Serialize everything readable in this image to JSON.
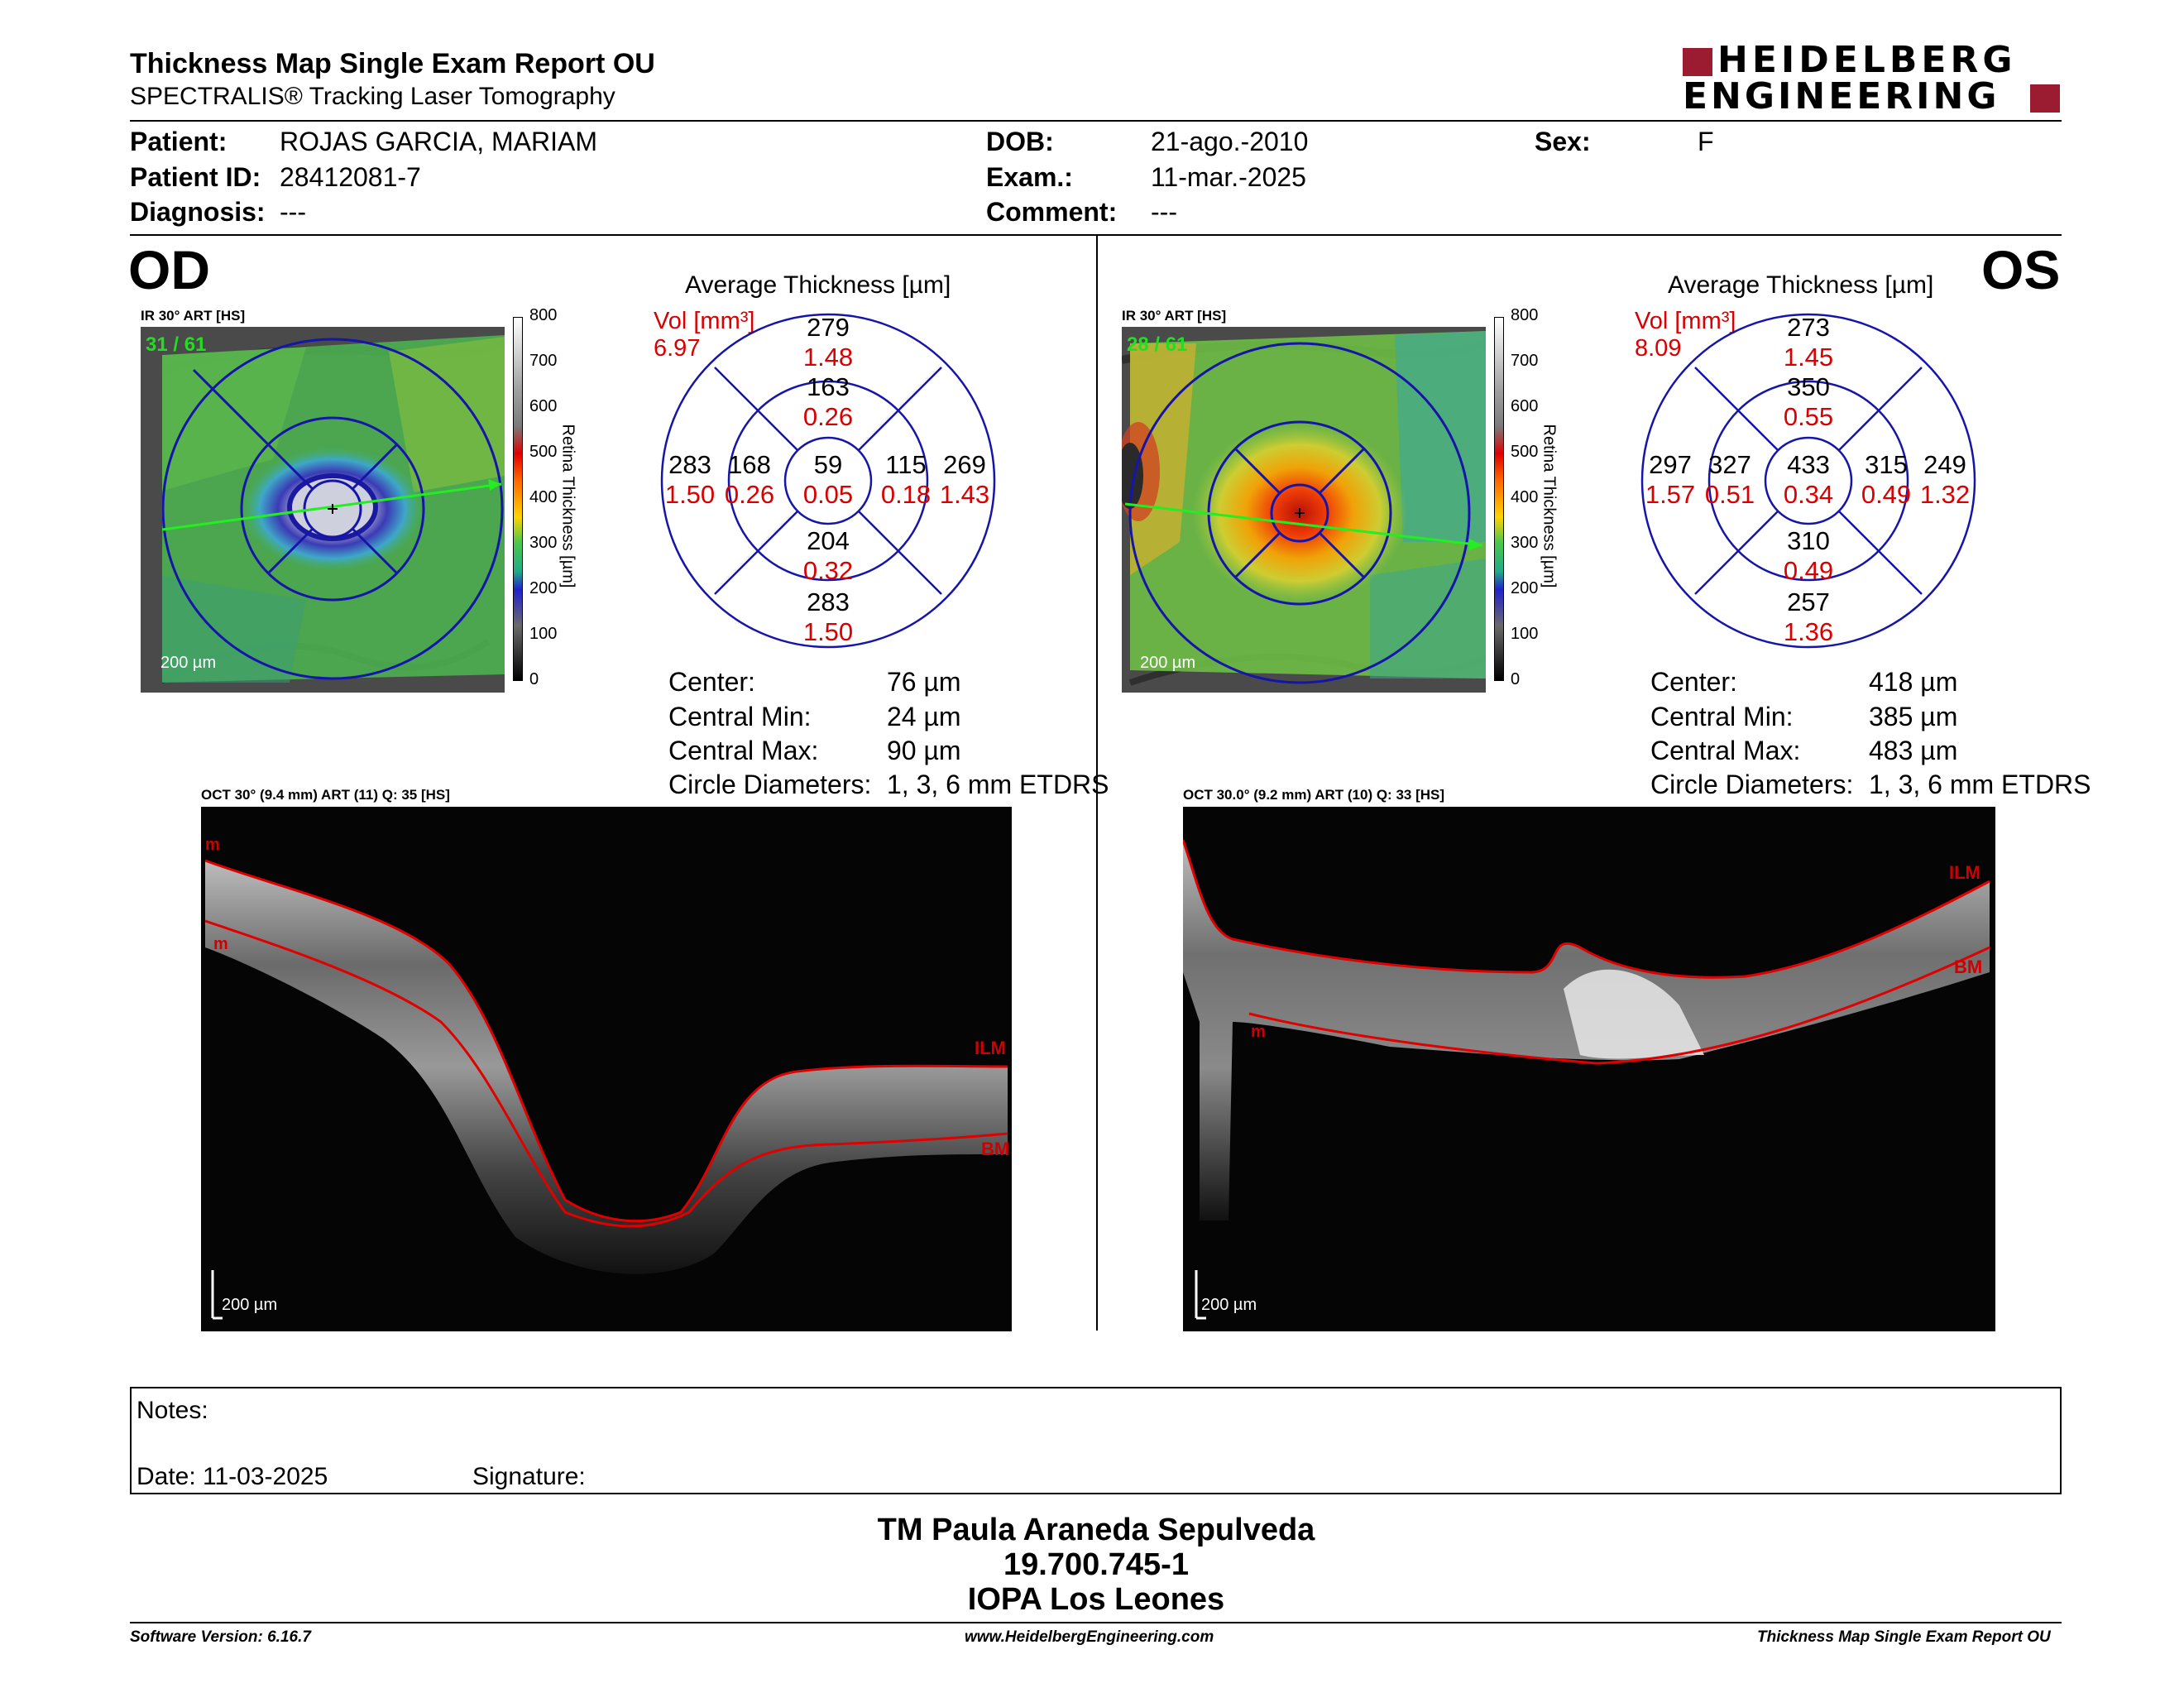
{
  "header": {
    "title": "Thickness Map Single Exam Report OU",
    "subtitle": "SPECTRALIS® Tracking Laser Tomography",
    "logo_line1": "HEIDELBERG",
    "logo_line2": "ENGINEERING",
    "brand_color": "#9b1b30"
  },
  "patient": {
    "patient_label": "Patient:",
    "patient_value": "ROJAS GARCIA, MARIAM",
    "id_label": "Patient ID:",
    "id_value": "28412081-7",
    "diagnosis_label": "Diagnosis:",
    "diagnosis_value": "---",
    "dob_label": "DOB:",
    "dob_value": "21-ago.-2010",
    "exam_label": "Exam.:",
    "exam_value": "11-mar.-2025",
    "comment_label": "Comment:",
    "comment_value": "---",
    "sex_label": "Sex:",
    "sex_value": "F"
  },
  "od": {
    "eye": "OD",
    "ir_title": "IR 30° ART [HS]",
    "frame": "31 / 61",
    "scale_bar": "200 µm",
    "avg_title": "Average Thickness [µm]",
    "vol_label": "Vol [mm³]",
    "vol_value": "6.97",
    "sectors": {
      "center": {
        "t": "59",
        "v": "0.05"
      },
      "inner_sup": {
        "t": "163",
        "v": "0.26"
      },
      "inner_inf": {
        "t": "204",
        "v": "0.32"
      },
      "inner_left": {
        "t": "168",
        "v": "0.26"
      },
      "inner_right": {
        "t": "115",
        "v": "0.18"
      },
      "outer_sup": {
        "t": "279",
        "v": "1.48"
      },
      "outer_inf": {
        "t": "283",
        "v": "1.50"
      },
      "outer_left": {
        "t": "283",
        "v": "1.50"
      },
      "outer_right": {
        "t": "269",
        "v": "1.43"
      }
    },
    "stats": {
      "center_label": "Center:",
      "center_value": "76 µm",
      "min_label": "Central Min:",
      "min_value": "24 µm",
      "max_label": "Central Max:",
      "max_value": "90 µm",
      "diam_label": "Circle Diameters:",
      "diam_value": "1, 3, 6 mm ETDRS"
    },
    "oct_title": "OCT 30° (9.4 mm) ART (11) Q: 35 [HS]",
    "oct_scale": "200 µm",
    "oct_labels": {
      "ilm": "ILM",
      "bm": "BM",
      "m1": "m",
      "m2": "m"
    }
  },
  "os": {
    "eye": "OS",
    "ir_title": "IR 30° ART [HS]",
    "frame": "28 / 61",
    "scale_bar": "200 µm",
    "avg_title": "Average Thickness [µm]",
    "vol_label": "Vol [mm³]",
    "vol_value": "8.09",
    "sectors": {
      "center": {
        "t": "433",
        "v": "0.34"
      },
      "inner_sup": {
        "t": "350",
        "v": "0.55"
      },
      "inner_inf": {
        "t": "310",
        "v": "0.49"
      },
      "inner_left": {
        "t": "327",
        "v": "0.51"
      },
      "inner_right": {
        "t": "315",
        "v": "0.49"
      },
      "outer_sup": {
        "t": "273",
        "v": "1.45"
      },
      "outer_inf": {
        "t": "257",
        "v": "1.36"
      },
      "outer_left": {
        "t": "297",
        "v": "1.57"
      },
      "outer_right": {
        "t": "249",
        "v": "1.32"
      }
    },
    "stats": {
      "center_label": "Center:",
      "center_value": "418 µm",
      "min_label": "Central Min:",
      "min_value": "385 µm",
      "max_label": "Central Max:",
      "max_value": "483 µm",
      "diam_label": "Circle Diameters:",
      "diam_value": "1, 3, 6 mm ETDRS"
    },
    "oct_title": "OCT 30.0° (9.2 mm) ART (10) Q: 33 [HS]",
    "oct_scale": "200 µm",
    "oct_labels": {
      "ilm": "ILM",
      "bm": "BM",
      "m1": "m"
    }
  },
  "color_scale": {
    "axis_label": "Retina  Thickness [µm]",
    "ticks": [
      "800",
      "700",
      "600",
      "500",
      "400",
      "300",
      "200",
      "100",
      "0"
    ]
  },
  "notes": {
    "notes_label": "Notes:",
    "date_label": "Date: 11-03-2025",
    "signature_label": "Signature:"
  },
  "signature_block": {
    "line1": "TM Paula Araneda Sepulveda",
    "line2": "19.700.745-1",
    "line3": "IOPA Los Leones"
  },
  "footer": {
    "software": "Software Version: 6.16.7",
    "website": "www.HeidelbergEngineering.com",
    "report": "Thickness Map Single Exam Report OU"
  }
}
